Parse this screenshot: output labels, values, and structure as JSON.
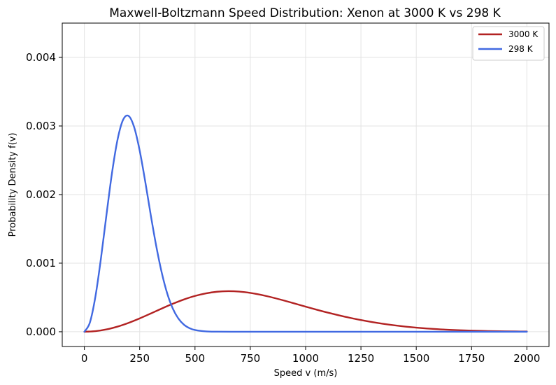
{
  "chart_data": {
    "type": "line",
    "title": "Maxwell-Boltzmann Speed Distribution: Xenon at 3000 K vs 298 K",
    "xlabel": "Speed v (m/s)",
    "ylabel": "Probability Density f(v)",
    "xlim": [
      -100,
      2100
    ],
    "ylim": [
      -0.000215,
      0.0045
    ],
    "xticks": [
      0,
      250,
      500,
      750,
      1000,
      1250,
      1500,
      1750,
      2000
    ],
    "xtick_labels": [
      "0",
      "250",
      "500",
      "750",
      "1000",
      "1250",
      "1500",
      "1750",
      "2000"
    ],
    "yticks": [
      0.0,
      0.001,
      0.002,
      0.003,
      0.004
    ],
    "ytick_labels": [
      "0.000",
      "0.001",
      "0.002",
      "0.003",
      "0.004"
    ],
    "grid": true,
    "legend_position": "top-right",
    "series": [
      {
        "name": "3000 K",
        "color": "#b22222",
        "x": [
          0,
          50,
          100,
          150,
          200,
          250,
          300,
          350,
          400,
          450,
          500,
          550,
          600,
          650,
          700,
          750,
          800,
          850,
          900,
          950,
          1000,
          1050,
          1100,
          1150,
          1200,
          1250,
          1300,
          1350,
          1400,
          1450,
          1500,
          1550,
          1600,
          1650,
          1700,
          1750,
          1800,
          1850,
          1900,
          1950,
          2000
        ],
        "y": [
          0.0,
          8.7e-06,
          3.43e-05,
          7.54e-05,
          0.0001298,
          0.0001948,
          0.0002658,
          0.000339,
          0.0004086,
          0.0004707,
          0.0005223,
          0.0005605,
          0.0005836,
          0.0005916,
          0.0005853,
          0.0005662,
          0.0005366,
          0.0004994,
          0.0004571,
          0.000412,
          0.0003663,
          0.0003216,
          0.0002791,
          0.0002396,
          0.0002033,
          0.0001706,
          0.0001415,
          0.0001162,
          9.44e-05,
          7.58e-05,
          6.02e-05,
          4.73e-05,
          3.68e-05,
          2.83e-05,
          2.16e-05,
          1.63e-05,
          1.21e-05,
          8.9e-06,
          6.5e-06,
          4.7e-06,
          3.4e-06
        ]
      },
      {
        "name": "298 K",
        "color": "#4169e1",
        "x": [
          0,
          25,
          50,
          75,
          100,
          125,
          150,
          175,
          200,
          225,
          250,
          275,
          300,
          325,
          350,
          375,
          400,
          425,
          450,
          475,
          500,
          550,
          600,
          700,
          800,
          1000,
          1250,
          1500,
          1750,
          2000
        ],
        "y": [
          0.0,
          0.000135,
          0.000514,
          0.001071,
          0.001708,
          0.002318,
          0.002802,
          0.00309,
          0.003147,
          0.002983,
          0.002641,
          0.002191,
          0.001702,
          0.001247,
          0.000858,
          0.000553,
          0.000336,
          0.000192,
          0.000103,
          5.23e-05,
          2.49e-05,
          4.8e-06,
          8e-07,
          0.0,
          0.0,
          0.0,
          0.0,
          0.0,
          0.0,
          0.0
        ]
      }
    ]
  }
}
